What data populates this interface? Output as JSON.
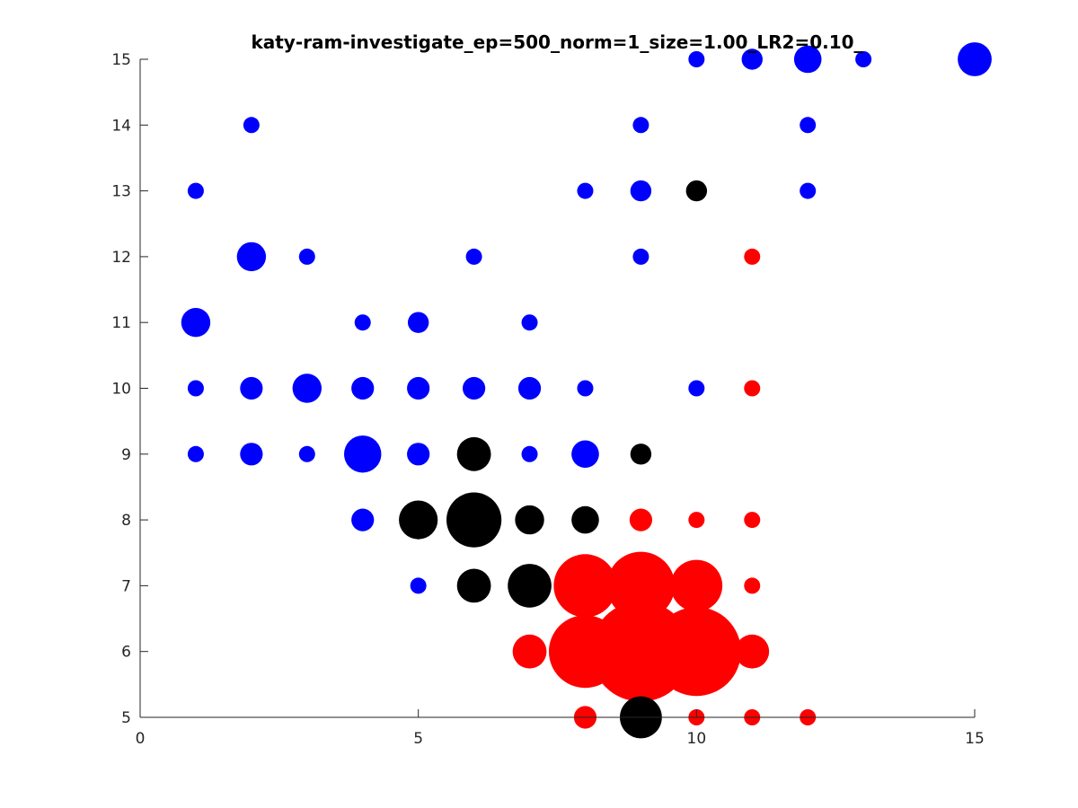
{
  "chart_data": {
    "type": "scatter",
    "title": "katy-ram-investigate_ep=500_norm=1_size=1.00_LR2=0.10_",
    "xlabel": "",
    "ylabel": "",
    "xlim": [
      0,
      15
    ],
    "ylim": [
      5,
      15
    ],
    "xticks": [
      0,
      5,
      10,
      15
    ],
    "yticks": [
      5,
      6,
      7,
      8,
      9,
      10,
      11,
      12,
      13,
      14,
      15
    ],
    "grid": false,
    "legend": "none",
    "colors": {
      "blue": "#0000ff",
      "black": "#000000",
      "red": "#ff0000"
    },
    "points": [
      {
        "x": 10,
        "y": 15,
        "size": 1.0,
        "color": "blue"
      },
      {
        "x": 11,
        "y": 15,
        "size": 1.3,
        "color": "blue"
      },
      {
        "x": 12,
        "y": 15,
        "size": 1.7,
        "color": "blue"
      },
      {
        "x": 13,
        "y": 15,
        "size": 1.0,
        "color": "blue"
      },
      {
        "x": 15,
        "y": 15,
        "size": 2.1,
        "color": "blue"
      },
      {
        "x": 2,
        "y": 14,
        "size": 1.0,
        "color": "blue"
      },
      {
        "x": 9,
        "y": 14,
        "size": 1.0,
        "color": "blue"
      },
      {
        "x": 12,
        "y": 14,
        "size": 1.0,
        "color": "blue"
      },
      {
        "x": 1,
        "y": 13,
        "size": 1.0,
        "color": "blue"
      },
      {
        "x": 8,
        "y": 13,
        "size": 1.0,
        "color": "blue"
      },
      {
        "x": 9,
        "y": 13,
        "size": 1.3,
        "color": "blue"
      },
      {
        "x": 10,
        "y": 13,
        "size": 1.3,
        "color": "black"
      },
      {
        "x": 12,
        "y": 13,
        "size": 1.0,
        "color": "blue"
      },
      {
        "x": 2,
        "y": 12,
        "size": 1.8,
        "color": "blue"
      },
      {
        "x": 3,
        "y": 12,
        "size": 1.0,
        "color": "blue"
      },
      {
        "x": 6,
        "y": 12,
        "size": 1.0,
        "color": "blue"
      },
      {
        "x": 9,
        "y": 12,
        "size": 1.0,
        "color": "blue"
      },
      {
        "x": 11,
        "y": 12,
        "size": 1.0,
        "color": "red"
      },
      {
        "x": 1,
        "y": 11,
        "size": 1.8,
        "color": "blue"
      },
      {
        "x": 4,
        "y": 11,
        "size": 1.0,
        "color": "blue"
      },
      {
        "x": 5,
        "y": 11,
        "size": 1.3,
        "color": "blue"
      },
      {
        "x": 7,
        "y": 11,
        "size": 1.0,
        "color": "blue"
      },
      {
        "x": 1,
        "y": 10,
        "size": 1.0,
        "color": "blue"
      },
      {
        "x": 2,
        "y": 10,
        "size": 1.4,
        "color": "blue"
      },
      {
        "x": 3,
        "y": 10,
        "size": 1.8,
        "color": "blue"
      },
      {
        "x": 4,
        "y": 10,
        "size": 1.4,
        "color": "blue"
      },
      {
        "x": 5,
        "y": 10,
        "size": 1.4,
        "color": "blue"
      },
      {
        "x": 6,
        "y": 10,
        "size": 1.4,
        "color": "blue"
      },
      {
        "x": 7,
        "y": 10,
        "size": 1.4,
        "color": "blue"
      },
      {
        "x": 8,
        "y": 10,
        "size": 1.0,
        "color": "blue"
      },
      {
        "x": 10,
        "y": 10,
        "size": 1.0,
        "color": "blue"
      },
      {
        "x": 11,
        "y": 10,
        "size": 1.0,
        "color": "red"
      },
      {
        "x": 1,
        "y": 9,
        "size": 1.0,
        "color": "blue"
      },
      {
        "x": 2,
        "y": 9,
        "size": 1.4,
        "color": "blue"
      },
      {
        "x": 3,
        "y": 9,
        "size": 1.0,
        "color": "blue"
      },
      {
        "x": 4,
        "y": 9,
        "size": 2.3,
        "color": "blue"
      },
      {
        "x": 5,
        "y": 9,
        "size": 1.4,
        "color": "blue"
      },
      {
        "x": 6,
        "y": 9,
        "size": 2.1,
        "color": "black"
      },
      {
        "x": 7,
        "y": 9,
        "size": 1.0,
        "color": "blue"
      },
      {
        "x": 8,
        "y": 9,
        "size": 1.7,
        "color": "blue"
      },
      {
        "x": 9,
        "y": 9,
        "size": 1.3,
        "color": "black"
      },
      {
        "x": 4,
        "y": 8,
        "size": 1.4,
        "color": "blue"
      },
      {
        "x": 5,
        "y": 8,
        "size": 2.4,
        "color": "black"
      },
      {
        "x": 6,
        "y": 8,
        "size": 3.4,
        "color": "black"
      },
      {
        "x": 7,
        "y": 8,
        "size": 1.8,
        "color": "black"
      },
      {
        "x": 8,
        "y": 8,
        "size": 1.7,
        "color": "black"
      },
      {
        "x": 9,
        "y": 8,
        "size": 1.4,
        "color": "red"
      },
      {
        "x": 10,
        "y": 8,
        "size": 1.0,
        "color": "red"
      },
      {
        "x": 11,
        "y": 8,
        "size": 1.0,
        "color": "red"
      },
      {
        "x": 5,
        "y": 7,
        "size": 1.0,
        "color": "blue"
      },
      {
        "x": 6,
        "y": 7,
        "size": 2.1,
        "color": "black"
      },
      {
        "x": 7,
        "y": 7,
        "size": 2.7,
        "color": "black"
      },
      {
        "x": 8,
        "y": 7,
        "size": 3.9,
        "color": "red"
      },
      {
        "x": 9,
        "y": 7,
        "size": 4.2,
        "color": "red"
      },
      {
        "x": 10,
        "y": 7,
        "size": 3.2,
        "color": "red"
      },
      {
        "x": 11,
        "y": 7,
        "size": 1.0,
        "color": "red"
      },
      {
        "x": 7,
        "y": 6,
        "size": 2.1,
        "color": "red"
      },
      {
        "x": 8,
        "y": 6,
        "size": 4.5,
        "color": "red"
      },
      {
        "x": 9,
        "y": 6,
        "size": 6.2,
        "color": "red"
      },
      {
        "x": 10,
        "y": 6,
        "size": 5.5,
        "color": "red"
      },
      {
        "x": 11,
        "y": 6,
        "size": 2.1,
        "color": "red"
      },
      {
        "x": 8,
        "y": 5,
        "size": 1.4,
        "color": "red"
      },
      {
        "x": 9,
        "y": 5,
        "size": 2.6,
        "color": "black"
      },
      {
        "x": 10,
        "y": 5,
        "size": 1.0,
        "color": "red"
      },
      {
        "x": 11,
        "y": 5,
        "size": 1.0,
        "color": "red"
      },
      {
        "x": 12,
        "y": 5,
        "size": 1.0,
        "color": "red"
      }
    ]
  }
}
